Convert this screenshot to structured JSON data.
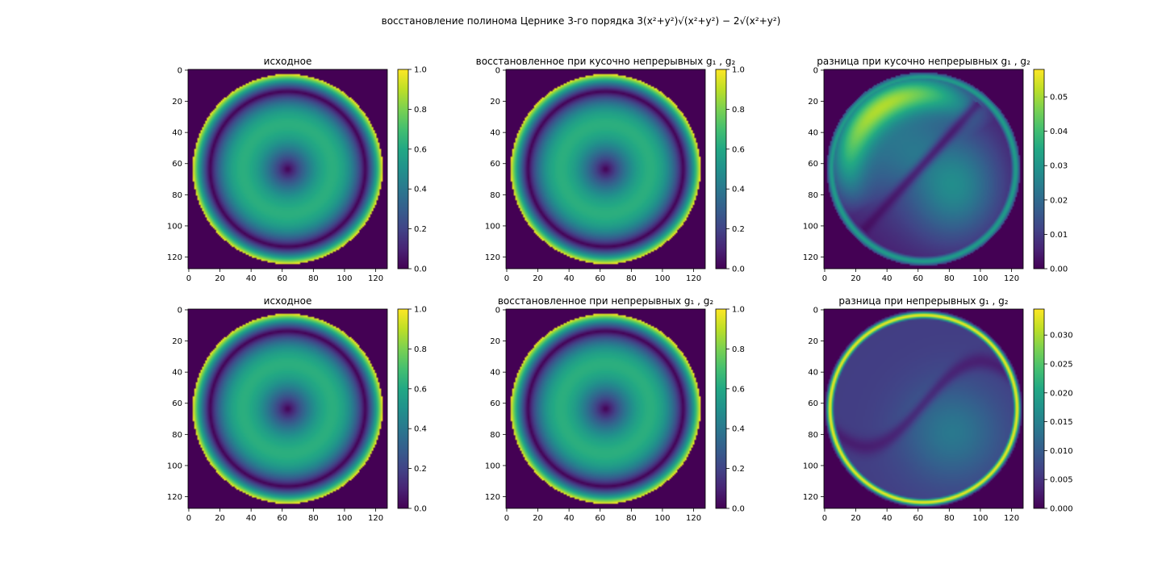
{
  "suptitle": "восстановление полинома Цернике 3-го порядка 3(x²+y²)√(x²+y²) − 2√(x²+y²)",
  "colormap": "viridis",
  "chart_data": [
    {
      "type": "heatmap",
      "title": "исходное",
      "image_size": 128,
      "pattern": "ring",
      "xticks": [
        0,
        20,
        40,
        60,
        80,
        100,
        120
      ],
      "yticks": [
        0,
        20,
        40,
        60,
        80,
        100,
        120
      ],
      "colorbar": {
        "min": 0.0,
        "max": 1.0,
        "ticks": [
          0.0,
          0.2,
          0.4,
          0.6,
          0.8,
          1.0
        ],
        "tick_labels": [
          "0.0",
          "0.2",
          "0.4",
          "0.6",
          "0.8",
          "1.0"
        ]
      }
    },
    {
      "type": "heatmap",
      "title": "восстановленное  при кусочно непрерывных g₁ , g₂",
      "image_size": 128,
      "pattern": "ring",
      "xticks": [
        0,
        20,
        40,
        60,
        80,
        100,
        120
      ],
      "yticks": [
        0,
        20,
        40,
        60,
        80,
        100,
        120
      ],
      "colorbar": {
        "min": 0.0,
        "max": 1.0,
        "ticks": [
          0.0,
          0.2,
          0.4,
          0.6,
          0.8,
          1.0
        ],
        "tick_labels": [
          "0.0",
          "0.2",
          "0.4",
          "0.6",
          "0.8",
          "1.0"
        ]
      }
    },
    {
      "type": "heatmap",
      "title": "разница при кусочно непрерывных g₁ , g₂",
      "image_size": 128,
      "pattern": "diff_piecewise",
      "xticks": [
        0,
        20,
        40,
        60,
        80,
        100,
        120
      ],
      "yticks": [
        0,
        20,
        40,
        60,
        80,
        100,
        120
      ],
      "colorbar": {
        "min": 0.0,
        "max": 0.058,
        "ticks": [
          0.0,
          0.01,
          0.02,
          0.03,
          0.04,
          0.05
        ],
        "tick_labels": [
          "0.00",
          "0.01",
          "0.02",
          "0.03",
          "0.04",
          "0.05"
        ]
      }
    },
    {
      "type": "heatmap",
      "title": "исходное",
      "image_size": 128,
      "pattern": "ring",
      "xticks": [
        0,
        20,
        40,
        60,
        80,
        100,
        120
      ],
      "yticks": [
        0,
        20,
        40,
        60,
        80,
        100,
        120
      ],
      "colorbar": {
        "min": 0.0,
        "max": 1.0,
        "ticks": [
          0.0,
          0.2,
          0.4,
          0.6,
          0.8,
          1.0
        ],
        "tick_labels": [
          "0.0",
          "0.2",
          "0.4",
          "0.6",
          "0.8",
          "1.0"
        ]
      }
    },
    {
      "type": "heatmap",
      "title": "восстановленное при непрерывных g₁ , g₂",
      "image_size": 128,
      "pattern": "ring",
      "xticks": [
        0,
        20,
        40,
        60,
        80,
        100,
        120
      ],
      "yticks": [
        0,
        20,
        40,
        60,
        80,
        100,
        120
      ],
      "colorbar": {
        "min": 0.0,
        "max": 1.0,
        "ticks": [
          0.0,
          0.2,
          0.4,
          0.6,
          0.8,
          1.0
        ],
        "tick_labels": [
          "0.0",
          "0.2",
          "0.4",
          "0.6",
          "0.8",
          "1.0"
        ]
      }
    },
    {
      "type": "heatmap",
      "title": "разница при непрерывных g₁ , g₂",
      "image_size": 128,
      "pattern": "diff_continuous",
      "xticks": [
        0,
        20,
        40,
        60,
        80,
        100,
        120
      ],
      "yticks": [
        0,
        20,
        40,
        60,
        80,
        100,
        120
      ],
      "colorbar": {
        "min": 0.0,
        "max": 0.0345,
        "ticks": [
          0.0,
          0.005,
          0.01,
          0.015,
          0.02,
          0.025,
          0.03
        ],
        "tick_labels": [
          "0.000",
          "0.005",
          "0.010",
          "0.015",
          "0.020",
          "0.025",
          "0.030"
        ]
      }
    }
  ]
}
